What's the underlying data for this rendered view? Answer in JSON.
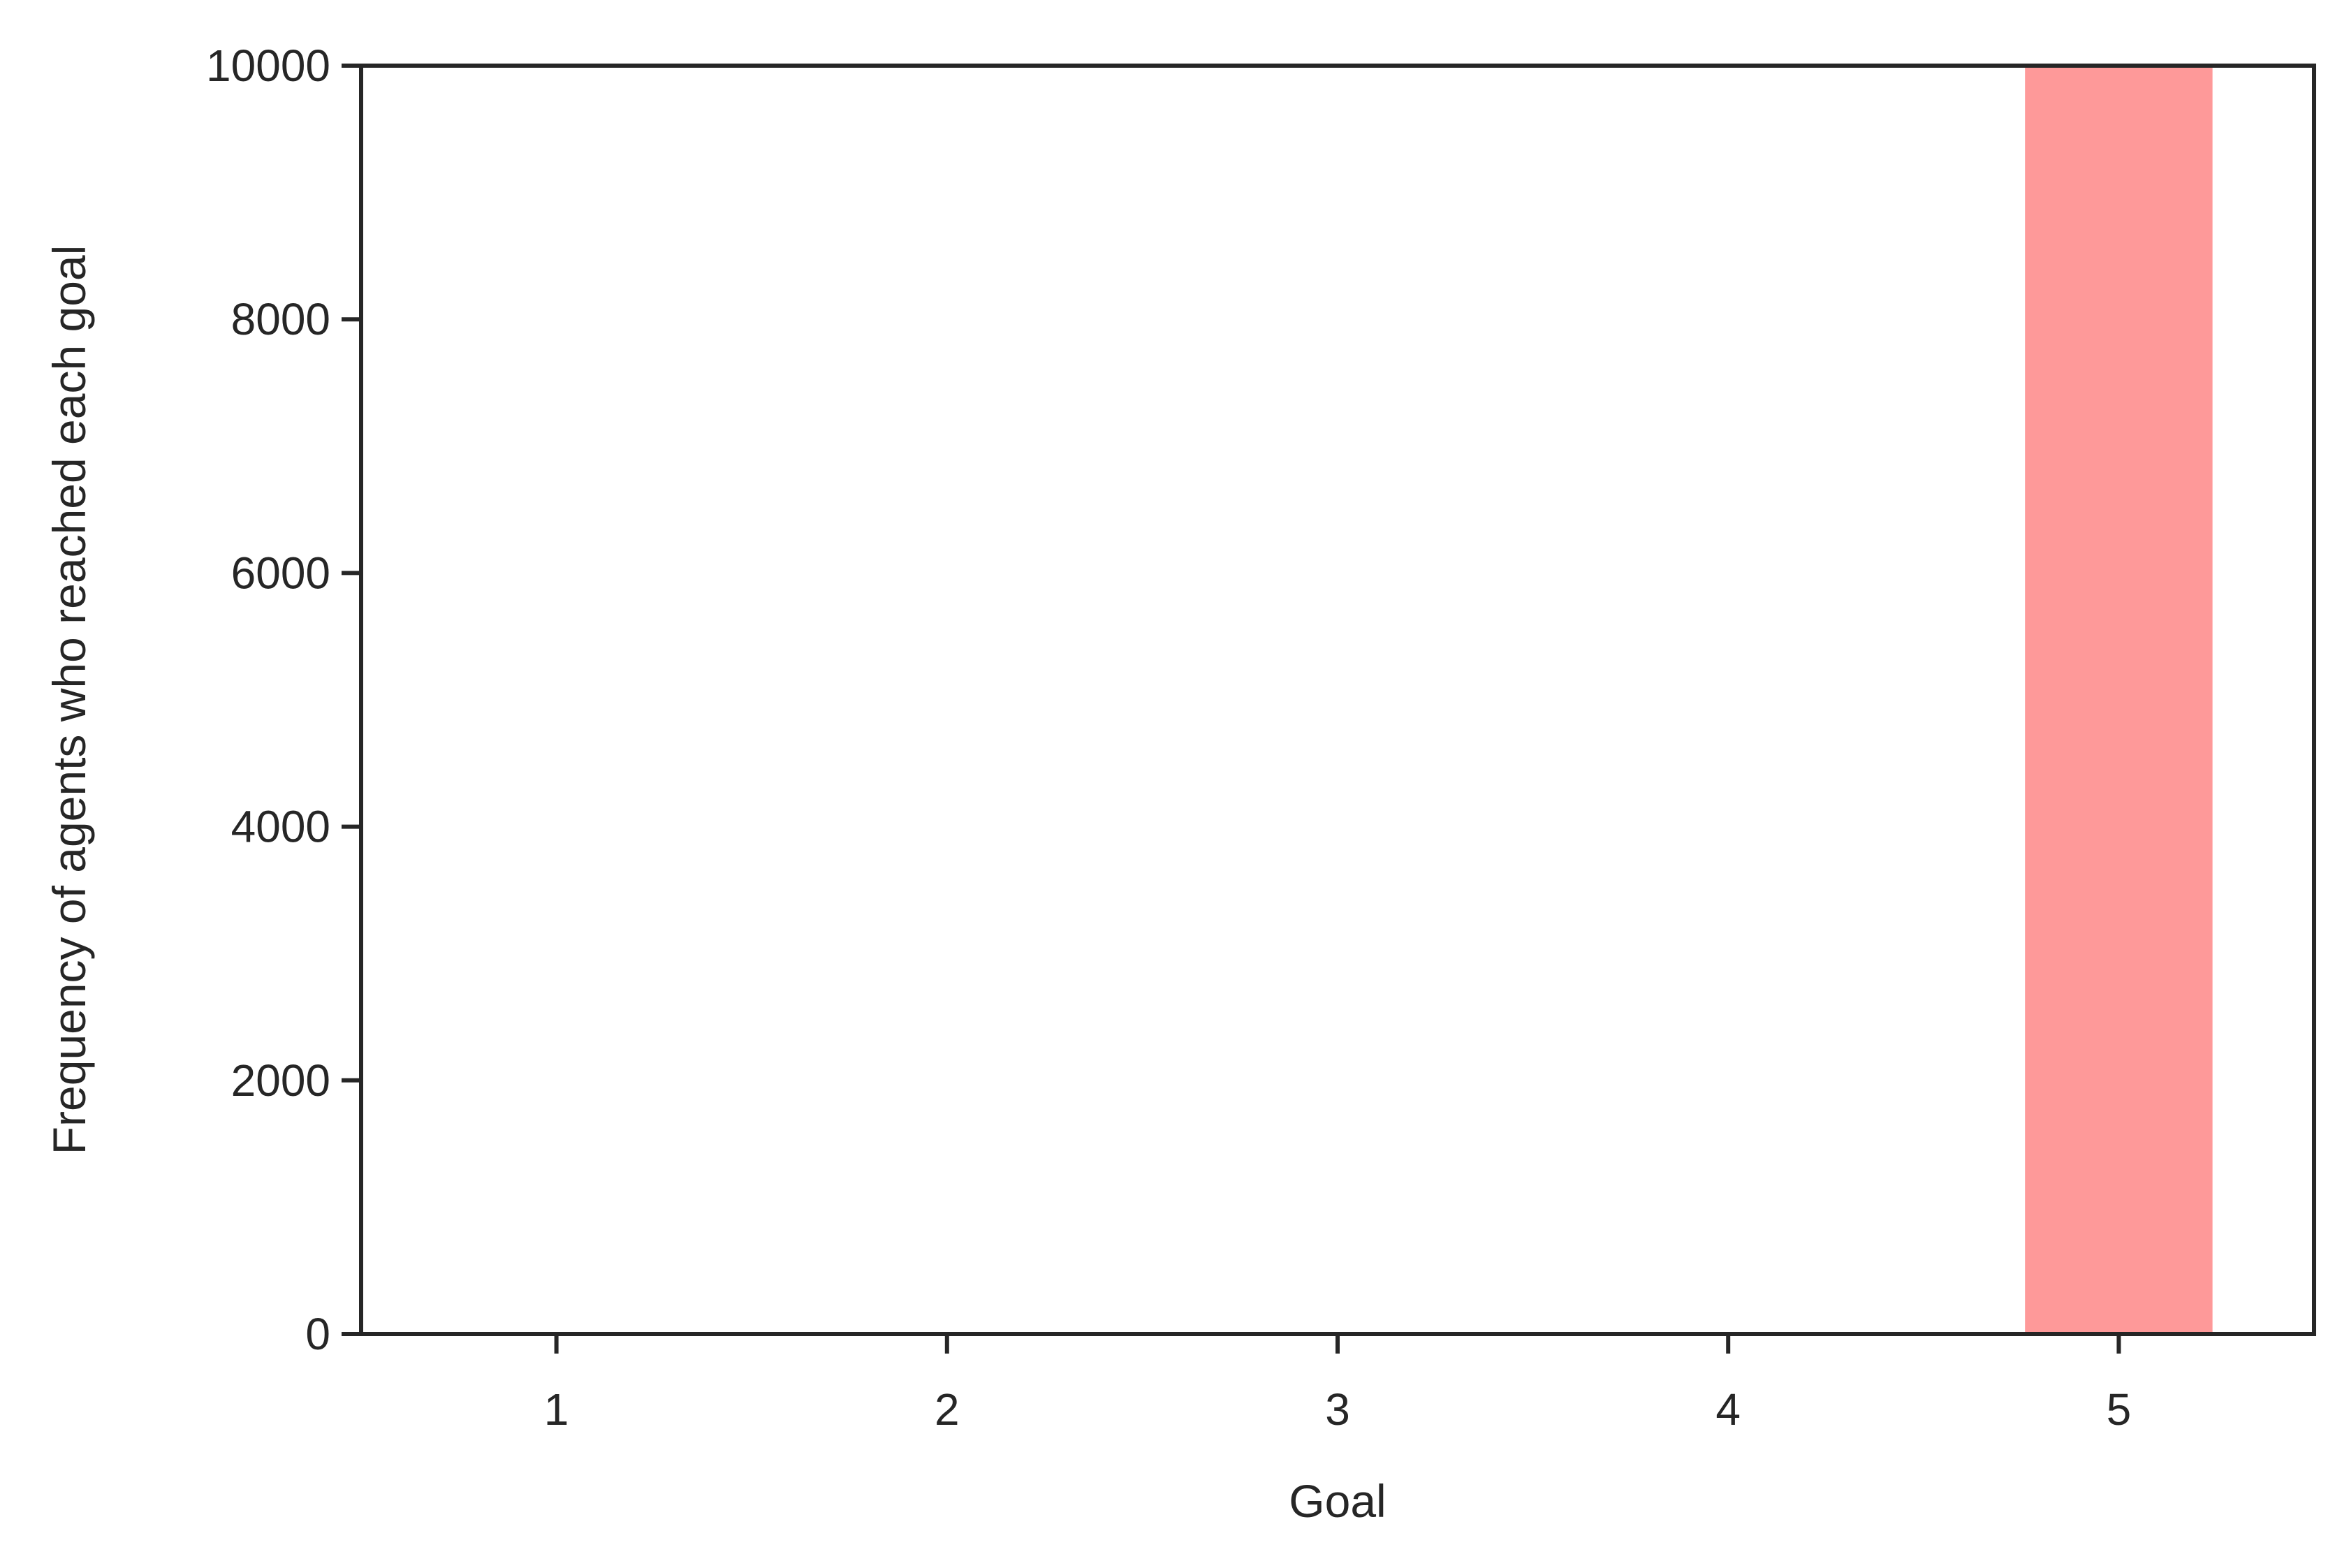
{
  "chart_data": {
    "type": "bar",
    "categories": [
      "1",
      "2",
      "3",
      "4",
      "5"
    ],
    "x": [
      1,
      2,
      3,
      4,
      5
    ],
    "values": [
      0,
      0,
      0,
      0,
      10000
    ],
    "title": "",
    "xlabel": "Goal",
    "ylabel": "Frequency of agents who reached each goal",
    "xlim": [
      0.5,
      5.5
    ],
    "ylim": [
      0,
      10000
    ],
    "yticks": [
      0,
      2000,
      4000,
      6000,
      8000,
      10000
    ],
    "ytick_labels": [
      "0",
      "2000",
      "4000",
      "6000",
      "8000",
      "10000"
    ],
    "xtick_labels": [
      "1",
      "2",
      "3",
      "4",
      "5"
    ],
    "grid": false,
    "bar_color": "#fe9999",
    "axis_color": "#262626"
  }
}
